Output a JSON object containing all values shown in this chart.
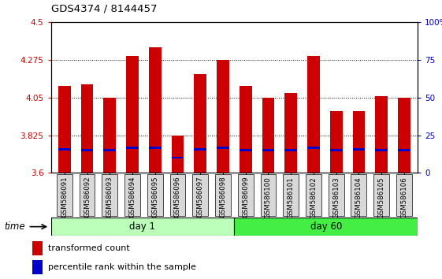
{
  "title": "GDS4374 / 8144457",
  "samples": [
    "GSM586091",
    "GSM586092",
    "GSM586093",
    "GSM586094",
    "GSM586095",
    "GSM586096",
    "GSM586097",
    "GSM586098",
    "GSM586099",
    "GSM586100",
    "GSM586101",
    "GSM586102",
    "GSM586103",
    "GSM586104",
    "GSM586105",
    "GSM586106"
  ],
  "red_values": [
    4.12,
    4.13,
    4.05,
    4.3,
    4.35,
    3.825,
    4.19,
    4.275,
    4.12,
    4.05,
    4.08,
    4.3,
    3.97,
    3.97,
    4.06,
    4.05
  ],
  "blue_bottom": [
    3.735,
    3.73,
    3.73,
    3.745,
    3.745,
    3.685,
    3.735,
    3.745,
    3.73,
    3.73,
    3.73,
    3.745,
    3.73,
    3.735,
    3.73,
    3.73
  ],
  "blue_height": [
    0.012,
    0.012,
    0.012,
    0.012,
    0.012,
    0.012,
    0.012,
    0.012,
    0.012,
    0.012,
    0.012,
    0.012,
    0.012,
    0.012,
    0.012,
    0.012
  ],
  "ymin": 3.6,
  "ymax": 4.5,
  "yticks": [
    3.6,
    3.825,
    4.05,
    4.275,
    4.5
  ],
  "ytick_labels": [
    "3.6",
    "3.825",
    "4.05",
    "4.275",
    "4.5"
  ],
  "right_yticks": [
    0,
    25,
    50,
    75,
    100
  ],
  "right_ytick_labels": [
    "0",
    "25",
    "50",
    "75",
    "100%"
  ],
  "day1_samples": 8,
  "day60_samples": 8,
  "day1_label": "day 1",
  "day60_label": "day 60",
  "time_label": "time",
  "legend_red": "transformed count",
  "legend_blue": "percentile rank within the sample",
  "bar_color_red": "#cc0000",
  "bar_color_blue": "#0000cc",
  "day1_color": "#bbffbb",
  "day60_color": "#44ee44",
  "background_color": "#ffffff",
  "tick_label_color_left": "#cc0000",
  "tick_label_color_right": "#0000cc",
  "bar_width": 0.55
}
